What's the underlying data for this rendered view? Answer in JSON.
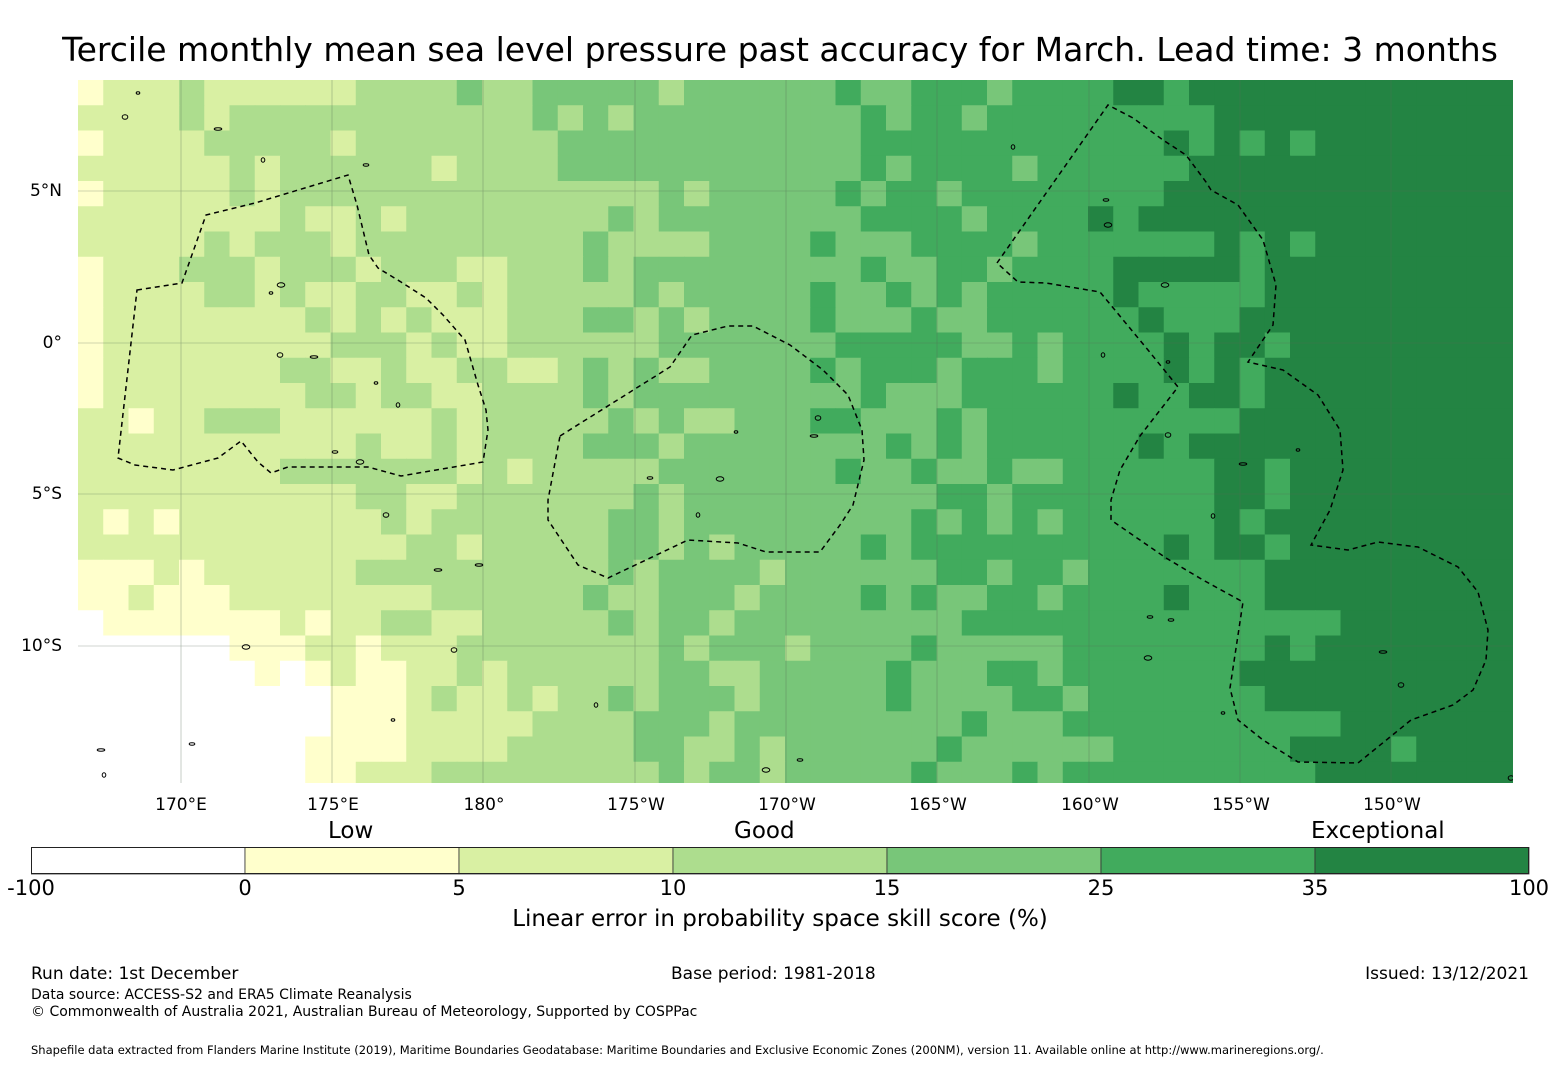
{
  "title": "Tercile monthly mean sea level pressure past accuracy for March. Lead time: 3 months",
  "map": {
    "lat_labels": [
      "5°N",
      "0°",
      "5°S",
      "10°S"
    ],
    "lon_labels": [
      "170°E",
      "175°E",
      "180°",
      "175°W",
      "170°W",
      "165°W",
      "160°W",
      "155°W",
      "150°W"
    ],
    "lon_range": [
      "166.6°E",
      "147.2°W"
    ],
    "lat_range": [
      "8.0°N",
      "14.5°S"
    ],
    "regions": [
      {
        "name": "Western dashed EEZ boundary"
      },
      {
        "name": "Central dashed EEZ boundary"
      },
      {
        "name": "Eastern dashed EEZ boundary"
      }
    ],
    "skill_field_description": "Gridded skill score field; low skill (0-5%) in southwest, exceptional (35-100%) in east"
  },
  "legend": {
    "categories": [
      {
        "label": "Low"
      },
      {
        "label": "Good"
      },
      {
        "label": "Exceptional"
      }
    ],
    "ticks": [
      "-100",
      "0",
      "5",
      "10",
      "15",
      "25",
      "35",
      "100"
    ],
    "bins": [
      {
        "range": "-100 to 0",
        "color": "#ffffff"
      },
      {
        "range": "0 to 5",
        "color": "#ffffcc"
      },
      {
        "range": "5 to 10",
        "color": "#d9f0a3"
      },
      {
        "range": "10 to 15",
        "color": "#addd8e"
      },
      {
        "range": "15 to 25",
        "color": "#78c679"
      },
      {
        "range": "25 to 35",
        "color": "#41ab5d"
      },
      {
        "range": "35 to 100",
        "color": "#238443"
      }
    ],
    "title": "Linear error in probability space skill score (%)"
  },
  "footer": {
    "run_date": "Run date: 1st December",
    "base_period": "Base period: 1981-2018",
    "issued": "Issued: 13/12/2021",
    "data_source": "Data source: ACCESS-S2 and ERA5 Climate Reanalysis",
    "copyright": "© Commonwealth of Australia 2021, Australian Bureau of Meteorology, Supported by COSPPac",
    "shapefile": "Shapefile data extracted from Flanders Marine Institute (2019), Maritime Boundaries Geodatabase: Maritime Boundaries and Exclusive Economic Zones (200NM), version 11. Available online at http://www.marineregions.org/."
  }
}
